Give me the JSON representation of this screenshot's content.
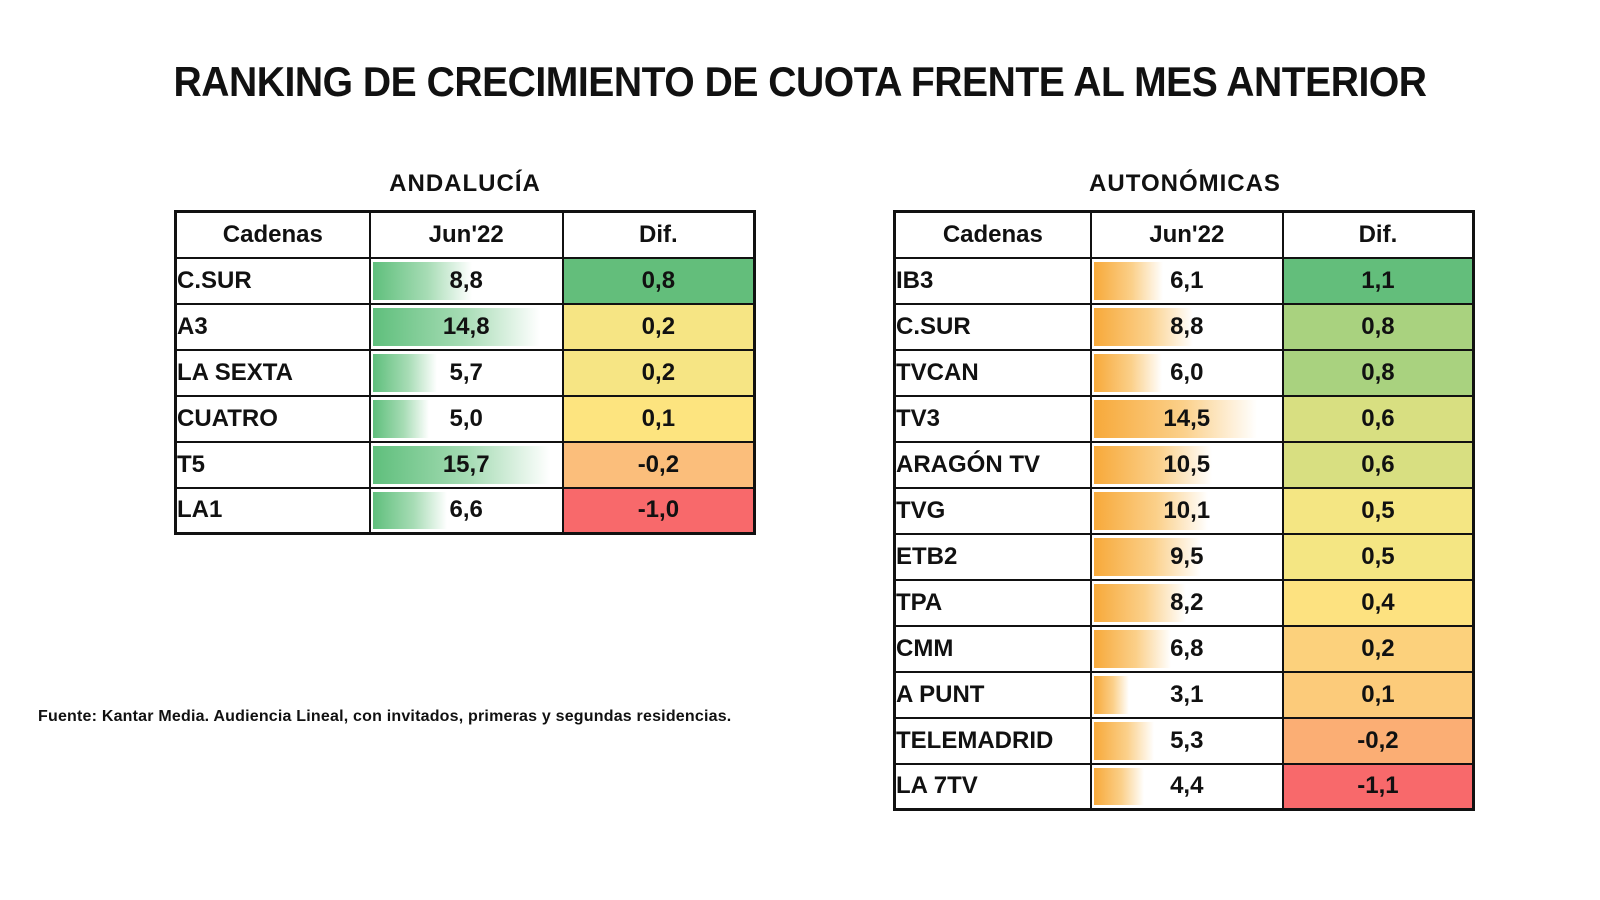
{
  "title": "RANKING DE CRECIMIENTO DE CUOTA FRENTE AL MES ANTERIOR",
  "footnote": "Fuente: Kantar Media. Audiencia Lineal, con invitados, primeras y segundas residencias.",
  "chart_data": [
    {
      "type": "table",
      "title": "ANDALUCÍA",
      "columns": [
        "Cadenas",
        "Jun'22",
        "Dif."
      ],
      "bar_color": "#5fbf7c",
      "rows": [
        {
          "name": "C.SUR",
          "value": "8,8",
          "dif": "0,8",
          "value_num": 8.8,
          "dif_color": "#63be7b"
        },
        {
          "name": "A3",
          "value": "14,8",
          "dif": "0,2",
          "value_num": 14.8,
          "dif_color": "#f6e584"
        },
        {
          "name": "LA SEXTA",
          "value": "5,7",
          "dif": "0,2",
          "value_num": 5.7,
          "dif_color": "#f6e584"
        },
        {
          "name": "CUATRO",
          "value": "5,0",
          "dif": "0,1",
          "value_num": 5.0,
          "dif_color": "#fde47f"
        },
        {
          "name": "T5",
          "value": "15,7",
          "dif": "-0,2",
          "value_num": 15.7,
          "dif_color": "#fbbe7b"
        },
        {
          "name": "LA1",
          "value": "6,6",
          "dif": "-1,0",
          "value_num": 6.6,
          "dif_color": "#f8696b"
        }
      ]
    },
    {
      "type": "table",
      "title": "AUTONÓMICAS",
      "columns": [
        "Cadenas",
        "Jun'22",
        "Dif."
      ],
      "bar_color": "#f7a93a",
      "rows": [
        {
          "name": "IB3",
          "value": "6,1",
          "dif": "1,1",
          "value_num": 6.1,
          "dif_color": "#63be7b"
        },
        {
          "name": "C.SUR",
          "value": "8,8",
          "dif": "0,8",
          "value_num": 8.8,
          "dif_color": "#a9d27f"
        },
        {
          "name": "TVCAN",
          "value": "6,0",
          "dif": "0,8",
          "value_num": 6.0,
          "dif_color": "#a9d27f"
        },
        {
          "name": "TV3",
          "value": "14,5",
          "dif": "0,6",
          "value_num": 14.5,
          "dif_color": "#d8df81"
        },
        {
          "name": "ARAGÓN TV",
          "value": "10,5",
          "dif": "0,6",
          "value_num": 10.5,
          "dif_color": "#d8df81"
        },
        {
          "name": "TVG",
          "value": "10,1",
          "dif": "0,5",
          "value_num": 10.1,
          "dif_color": "#f4e683"
        },
        {
          "name": "ETB2",
          "value": "9,5",
          "dif": "0,5",
          "value_num": 9.5,
          "dif_color": "#f4e683"
        },
        {
          "name": "TPA",
          "value": "8,2",
          "dif": "0,4",
          "value_num": 8.2,
          "dif_color": "#fde280"
        },
        {
          "name": "CMM",
          "value": "6,8",
          "dif": "0,2",
          "value_num": 6.8,
          "dif_color": "#fcd17c"
        },
        {
          "name": "A PUNT",
          "value": "3,1",
          "dif": "0,1",
          "value_num": 3.1,
          "dif_color": "#fccb7a"
        },
        {
          "name": "TELEMADRID",
          "value": "5,3",
          "dif": "-0,2",
          "value_num": 5.3,
          "dif_color": "#fbae74"
        },
        {
          "name": "LA 7TV",
          "value": "4,4",
          "dif": "-1,1",
          "value_num": 4.4,
          "dif_color": "#f8696b"
        }
      ]
    }
  ]
}
